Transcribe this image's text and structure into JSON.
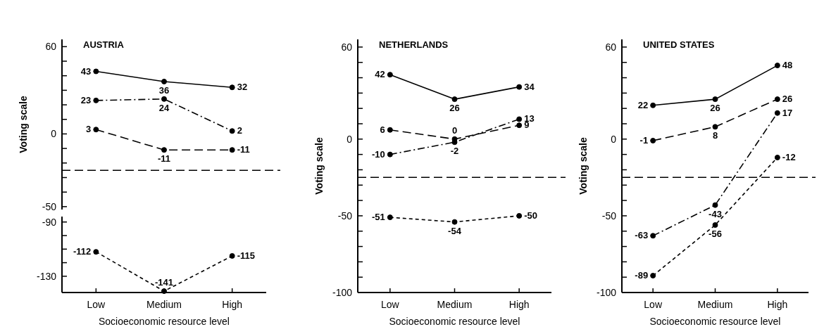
{
  "chart_data": [
    {
      "type": "line",
      "title": "AUSTRIA",
      "ylabel": "Voting scale",
      "categories": [
        null,
        null,
        null
      ],
      "ylim": [
        -52,
        65
      ],
      "yticks": [
        60,
        {
          "value": 50,
          "label": null
        },
        {
          "value": 40,
          "label": null
        },
        {
          "value": 30,
          "label": null
        },
        {
          "value": 20,
          "label": null
        },
        {
          "value": 10,
          "label": null
        },
        0,
        {
          "value": -10,
          "label": null
        },
        {
          "value": -20,
          "label": null
        },
        {
          "value": -30,
          "label": null
        },
        {
          "value": -40,
          "label": null
        },
        -50
      ],
      "marker": "circle",
      "data_labels": true,
      "series": [
        {
          "color": "#000000",
          "line_style": "solid",
          "values": [
            43,
            36,
            32
          ]
        },
        {
          "color": "#000000",
          "line_style": "dashdot",
          "values": [
            23,
            24,
            2
          ]
        },
        {
          "color": "#000000",
          "line_style": "dashed",
          "values": [
            3,
            -11,
            -11
          ]
        }
      ],
      "ref_lines": [
        {
          "axis": "y",
          "value": -25,
          "color": "#000000",
          "line_style": "dashed"
        }
      ]
    },
    {
      "type": "line",
      "xlabel": "Socioeconomic resource level",
      "categories": [
        "Low",
        "Medium",
        "High"
      ],
      "ylim": [
        -142,
        -86
      ],
      "yticks": [
        -90,
        {
          "value": -100,
          "label": null
        },
        {
          "value": -110,
          "label": null
        },
        {
          "value": -120,
          "label": null
        },
        -130
      ],
      "marker": "circle",
      "data_labels": true,
      "series": [
        {
          "color": "#000000",
          "line_style": "dotted",
          "values": [
            -112,
            -141,
            -115
          ]
        }
      ]
    },
    {
      "type": "line",
      "title": "NETHERLANDS",
      "xlabel": "Socioeconomic resource level",
      "ylabel": "Voting scale",
      "categories": [
        "Low",
        "Medium",
        "High"
      ],
      "ylim": [
        -100,
        65
      ],
      "yticks": [
        60,
        {
          "value": 50,
          "label": null
        },
        {
          "value": 40,
          "label": null
        },
        {
          "value": 30,
          "label": null
        },
        {
          "value": 20,
          "label": null
        },
        {
          "value": 10,
          "label": null
        },
        0,
        {
          "value": -10,
          "label": null
        },
        {
          "value": -20,
          "label": null
        },
        {
          "value": -30,
          "label": null
        },
        {
          "value": -40,
          "label": null
        },
        -50,
        {
          "value": -60,
          "label": null
        },
        {
          "value": -70,
          "label": null
        },
        {
          "value": -80,
          "label": null
        },
        {
          "value": -90,
          "label": null
        },
        -100
      ],
      "marker": "circle",
      "data_labels": true,
      "series": [
        {
          "color": "#000000",
          "line_style": "solid",
          "values": [
            42,
            26,
            34
          ]
        },
        {
          "color": "#000000",
          "line_style": "dashed",
          "values": [
            6,
            0,
            9
          ]
        },
        {
          "color": "#000000",
          "line_style": "dashdot",
          "values": [
            -10,
            -2,
            13
          ]
        },
        {
          "color": "#000000",
          "line_style": "dotted",
          "values": [
            -51,
            -54,
            -50
          ]
        }
      ],
      "ref_lines": [
        {
          "axis": "y",
          "value": -25,
          "color": "#000000",
          "line_style": "dashed"
        }
      ]
    },
    {
      "type": "line",
      "title": "UNITED STATES",
      "xlabel": "Socioeconomic resource level",
      "ylabel": "Voting scale",
      "categories": [
        "Low",
        "Medium",
        "High"
      ],
      "ylim": [
        -100,
        65
      ],
      "yticks": [
        60,
        {
          "value": 50,
          "label": null
        },
        {
          "value": 40,
          "label": null
        },
        {
          "value": 30,
          "label": null
        },
        {
          "value": 20,
          "label": null
        },
        {
          "value": 10,
          "label": null
        },
        0,
        {
          "value": -10,
          "label": null
        },
        {
          "value": -20,
          "label": null
        },
        {
          "value": -30,
          "label": null
        },
        {
          "value": -40,
          "label": null
        },
        -50,
        {
          "value": -60,
          "label": null
        },
        {
          "value": -70,
          "label": null
        },
        {
          "value": -80,
          "label": null
        },
        {
          "value": -90,
          "label": null
        },
        -100
      ],
      "marker": "circle",
      "data_labels": true,
      "series": [
        {
          "color": "#000000",
          "line_style": "solid",
          "values": [
            22,
            26,
            48
          ]
        },
        {
          "color": "#000000",
          "line_style": "dashed",
          "values": [
            -1,
            8,
            26
          ]
        },
        {
          "color": "#000000",
          "line_style": "dashdot",
          "values": [
            -63,
            -43,
            17
          ]
        },
        {
          "color": "#000000",
          "line_style": "dotted",
          "values": [
            -89,
            -56,
            -12
          ]
        }
      ],
      "ref_lines": [
        {
          "axis": "y",
          "value": -25,
          "color": "#000000",
          "line_style": "dashed"
        }
      ]
    }
  ]
}
